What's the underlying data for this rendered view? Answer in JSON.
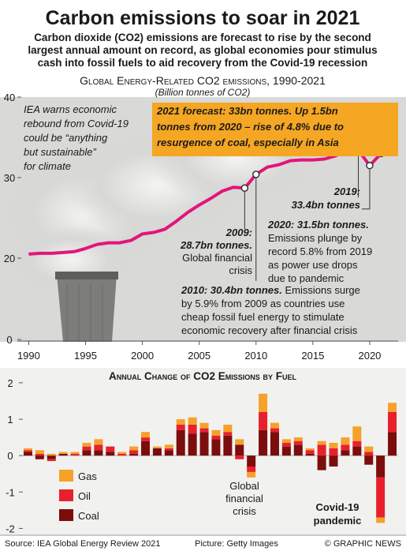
{
  "header": {
    "title": "Carbon emissions to soar in 2021",
    "subtitle": [
      "Carbon dioxide (CO2) emissions are forecast to rise by the second",
      "largest annual amount on record, as global economies pour stimulus",
      "cash into fossil fuels to aid recovery from the Covid-19 recession"
    ]
  },
  "chart_data": [
    {
      "type": "line",
      "title": "Global Energy-Related CO2 emissions, 1990-2021",
      "subtitle": "(Billion tonnes of CO2)",
      "x": [
        1990,
        1991,
        1992,
        1993,
        1994,
        1995,
        1996,
        1997,
        1998,
        1999,
        2000,
        2001,
        2002,
        2003,
        2004,
        2005,
        2006,
        2007,
        2008,
        2009,
        2010,
        2011,
        2012,
        2013,
        2014,
        2015,
        2016,
        2017,
        2018,
        2019,
        2020,
        2021
      ],
      "values": [
        20.5,
        20.6,
        20.6,
        20.7,
        20.8,
        21.2,
        21.7,
        21.9,
        21.9,
        22.2,
        23.0,
        23.2,
        23.6,
        24.6,
        25.7,
        26.6,
        27.4,
        28.3,
        28.8,
        28.7,
        30.4,
        31.3,
        31.6,
        32.1,
        32.2,
        32.2,
        32.3,
        32.7,
        33.5,
        33.4,
        31.5,
        33.0
      ],
      "color": "#e2157a",
      "xlim": [
        1989,
        2022.5
      ],
      "xticks": [
        1990,
        1995,
        2000,
        2005,
        2010,
        2015,
        2020
      ],
      "ylim": [
        0,
        40
      ],
      "yticks": [
        0,
        20,
        30,
        40
      ],
      "annotations": [
        {
          "lines": [
            "IEA warns economic",
            "rebound from Covid-19",
            "could be “anything",
            "but sustainable”",
            "for climate"
          ]
        },
        {
          "bold": [
            "2021 forecast: 33bn tonnes. Up 1.5bn",
            "tonnes from 2020 – rise of 4.8% due to",
            "resurgence of coal, especially in Asia"
          ]
        },
        {
          "bold": [
            "2009:",
            "28.7bn tonnes."
          ],
          "lines": [
            "Global financial",
            "crisis"
          ]
        },
        {
          "bold": [
            "2010: 30.4bn tonnes."
          ],
          "lines": [
            "Emissions surge",
            "by 5.9% from 2009 as countries use",
            "cheap fossil fuel energy to stimulate",
            "economic recovery after financial crisis"
          ]
        },
        {
          "bold": [
            "2019:",
            "33.4bn tonnes"
          ]
        },
        {
          "bold": [
            "2020: 31.5bn tonnes."
          ],
          "lines": [
            "Emissions plunge by",
            "record 5.8% from 2019",
            "as power use drops",
            "due to pandemic"
          ]
        }
      ]
    },
    {
      "type": "bar",
      "stacked": true,
      "title": "Annual Change of CO2 Emissions by Fuel",
      "categories": [
        null,
        null,
        null,
        null,
        null,
        null,
        null,
        null,
        null,
        null,
        null,
        null,
        null,
        null,
        null,
        null,
        null,
        null,
        null,
        null,
        null,
        null,
        null,
        null,
        null,
        null,
        null,
        null,
        null,
        null,
        null,
        null
      ],
      "series": [
        {
          "name": "Coal",
          "color": "#7b0d0d",
          "values": [
            0.1,
            -0.1,
            -0.1,
            0.05,
            0.0,
            0.15,
            0.15,
            0.1,
            0.0,
            0.05,
            0.4,
            0.2,
            0.15,
            0.7,
            0.6,
            0.65,
            0.45,
            0.55,
            0.3,
            -0.3,
            0.7,
            0.65,
            0.25,
            0.3,
            0.05,
            -0.4,
            -0.3,
            0.15,
            0.25,
            -0.25,
            -0.6,
            0.65
          ]
        },
        {
          "name": "Oil",
          "color": "#e8202c",
          "values": [
            0.05,
            0.05,
            -0.05,
            0.0,
            0.05,
            0.1,
            0.15,
            0.15,
            0.05,
            0.1,
            0.1,
            0.0,
            0.05,
            0.15,
            0.25,
            0.1,
            0.1,
            0.1,
            -0.1,
            -0.15,
            0.5,
            0.1,
            0.1,
            0.1,
            0.1,
            0.3,
            0.2,
            0.15,
            0.15,
            0.1,
            -1.1,
            0.55
          ]
        },
        {
          "name": "Gas",
          "color": "#f5a12a",
          "values": [
            0.05,
            0.1,
            0.05,
            0.05,
            0.05,
            0.1,
            0.15,
            0.0,
            0.05,
            0.1,
            0.15,
            0.05,
            0.1,
            0.15,
            0.2,
            0.15,
            0.15,
            0.2,
            0.15,
            -0.15,
            0.5,
            0.15,
            0.1,
            0.1,
            0.05,
            0.1,
            0.15,
            0.2,
            0.4,
            0.15,
            -0.15,
            0.25
          ]
        }
      ],
      "ylim": [
        -2.1,
        2.15
      ],
      "yticks": [
        -2,
        -1,
        0,
        1,
        2
      ],
      "legend": "lower left",
      "annotations": [
        {
          "lines": [
            "Global",
            "financial",
            "crisis"
          ]
        },
        {
          "bold": [
            "Covid-19",
            "pandemic"
          ]
        }
      ]
    }
  ],
  "footer": {
    "source": "Source: IEA Global Energy Review 2021",
    "credit": "Picture: Getty Images",
    "brand": "© GRAPHIC NEWS"
  }
}
